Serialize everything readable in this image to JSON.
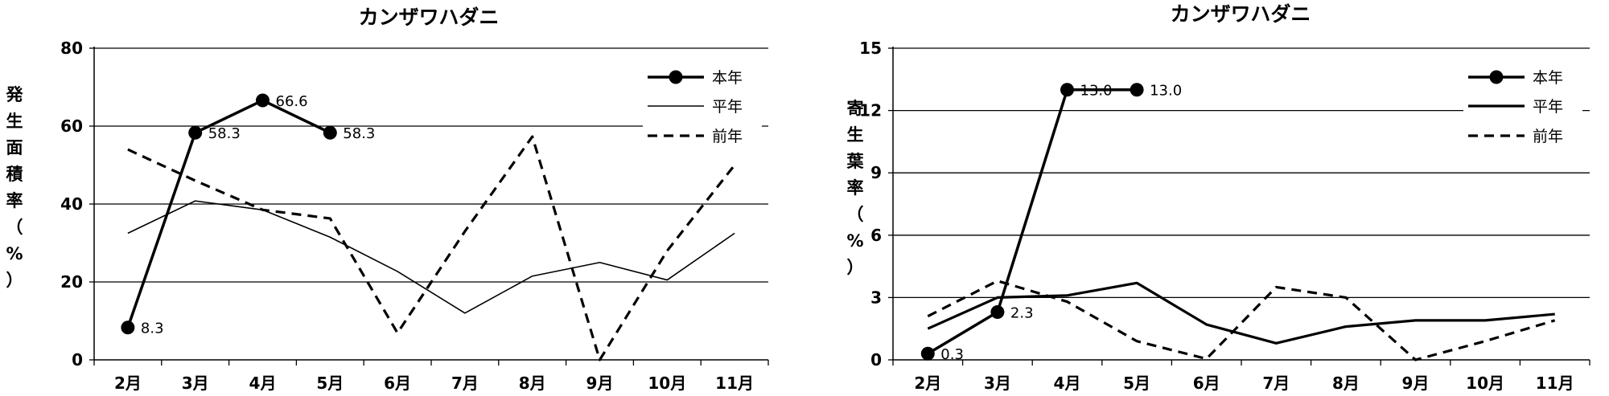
{
  "chart_data": [
    {
      "type": "line",
      "title": "カンザワハダニ",
      "ylabel": "発生面積率（%）",
      "categories": [
        "2月",
        "3月",
        "4月",
        "5月",
        "6月",
        "7月",
        "8月",
        "9月",
        "10月",
        "11月"
      ],
      "ylim": [
        0,
        80
      ],
      "yticks": [
        "0",
        "20",
        "40",
        "60",
        "80"
      ],
      "grid": true,
      "legend_position": "top-right",
      "series": [
        {
          "name": "本年",
          "style": "solid-marker",
          "values": [
            8.3,
            58.3,
            66.6,
            58.3,
            null,
            null,
            null,
            null,
            null,
            null
          ],
          "labels": [
            "8.3",
            "58.3",
            "66.6",
            "58.3"
          ]
        },
        {
          "name": "平年",
          "style": "thin",
          "values": [
            32.5,
            40.8,
            38.5,
            31.5,
            22.7,
            12.0,
            21.5,
            25.0,
            20.5,
            32.5
          ]
        },
        {
          "name": "前年",
          "style": "dashed",
          "values": [
            54.0,
            46.0,
            38.5,
            36.3,
            6.9,
            33.0,
            57.3,
            0.0,
            28.0,
            50.0
          ]
        }
      ]
    },
    {
      "type": "line",
      "title": "カンザワハダニ",
      "ylabel": "寄生葉率（%）",
      "categories": [
        "2月",
        "3月",
        "4月",
        "5月",
        "6月",
        "7月",
        "8月",
        "9月",
        "10月",
        "11月"
      ],
      "ylim": [
        0,
        15
      ],
      "yticks": [
        "0",
        "3",
        "6",
        "9",
        "12",
        "15"
      ],
      "grid": true,
      "legend_position": "top-right",
      "series": [
        {
          "name": "本年",
          "style": "solid-marker",
          "values": [
            0.3,
            2.3,
            13.0,
            13.0,
            null,
            null,
            null,
            null,
            null,
            null
          ],
          "labels": [
            "0.3",
            "2.3",
            "13.0",
            "13.0"
          ]
        },
        {
          "name": "平年",
          "style": "thick",
          "values": [
            1.5,
            3.0,
            3.1,
            3.7,
            1.7,
            0.8,
            1.6,
            1.9,
            1.9,
            2.2
          ]
        },
        {
          "name": "前年",
          "style": "dashed",
          "values": [
            2.1,
            3.8,
            2.8,
            0.9,
            0.05,
            3.5,
            3.0,
            0.0,
            0.9,
            1.9
          ]
        }
      ]
    }
  ]
}
